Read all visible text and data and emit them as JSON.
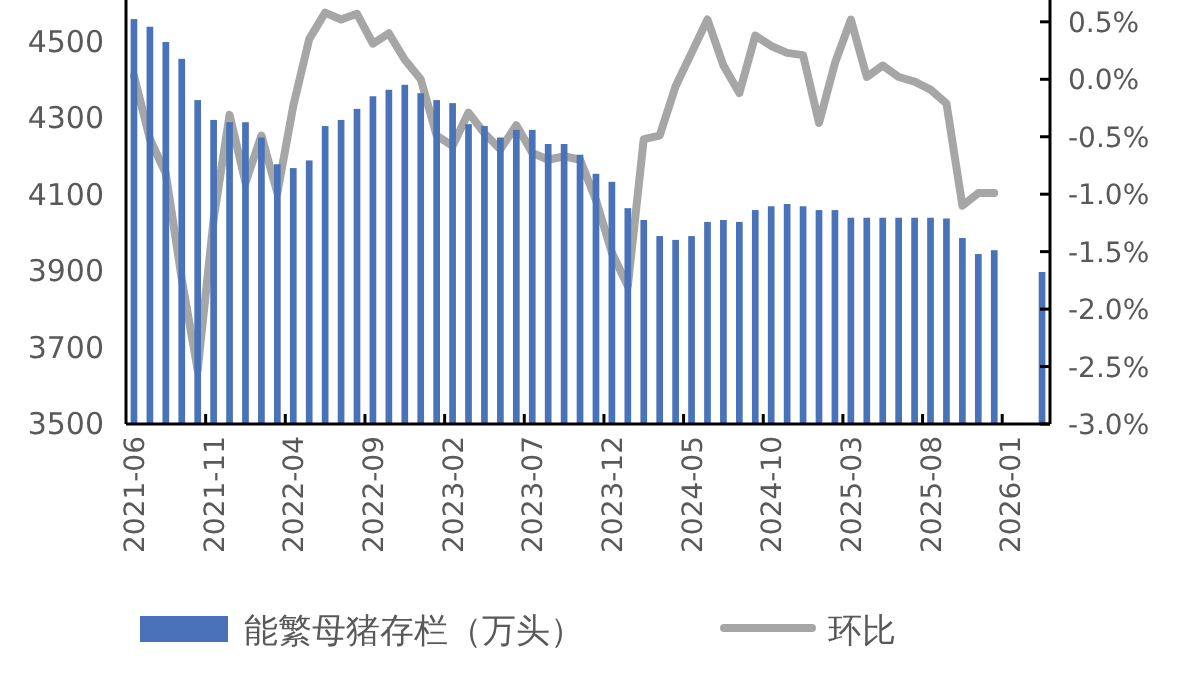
{
  "chart_data": {
    "type": "bar",
    "categories": [
      "2021-06",
      null,
      null,
      null,
      null,
      "2021-11",
      null,
      null,
      null,
      null,
      "2022-04",
      null,
      null,
      null,
      null,
      "2022-09",
      null,
      null,
      null,
      null,
      "2023-02",
      null,
      null,
      null,
      null,
      "2023-07",
      null,
      null,
      null,
      null,
      "2023-12",
      null,
      null,
      null,
      null,
      "2024-05",
      null,
      null,
      null,
      null,
      "2024-10",
      null,
      null,
      null,
      null,
      "2025-03",
      null,
      null,
      null,
      null,
      "2025-08",
      null,
      null,
      null,
      null,
      "2026-01",
      null,
      null
    ],
    "series": [
      {
        "name": "能繁母猪存栏（万头）",
        "color": "#4a72b8",
        "values": [
          4560,
          4540,
          4500,
          4456,
          4348,
          4296,
          4290,
          4290,
          4250,
          4180,
          4170,
          4190,
          4280,
          4296,
          4325,
          4358,
          4375,
          4388,
          4366,
          4348,
          4340,
          4285,
          4280,
          4250,
          4270,
          4270,
          4233,
          4233,
          4205,
          4155,
          4134,
          4065,
          4034,
          3992,
          3982,
          3992,
          4029,
          4034,
          4029,
          4060,
          4070,
          4076,
          4070,
          4060,
          4060,
          4040,
          4040,
          4040,
          4040,
          4040,
          4040,
          4038,
          3987,
          3945,
          3955,
          null,
          null,
          3898
        ]
      },
      {
        "name": "环比",
        "type": "line",
        "axis": "y2",
        "color": "#a6a6a6",
        "values": [
          0.03,
          -0.52,
          -0.82,
          -1.74,
          -2.53,
          -1.22,
          -0.31,
          -0.9,
          -0.49,
          -0.99,
          -0.23,
          0.35,
          0.58,
          0.52,
          0.57,
          0.31,
          0.4,
          0.17,
          0.0,
          -0.49,
          -0.58,
          -0.29,
          -0.47,
          -0.61,
          -0.4,
          -0.64,
          -0.7,
          -0.67,
          -0.7,
          -1.05,
          -1.51,
          -1.8,
          -0.52,
          -0.49,
          -0.06,
          0.23,
          0.52,
          0.12,
          -0.12,
          0.38,
          0.29,
          0.23,
          0.21,
          -0.38,
          0.14,
          0.52,
          0.02,
          0.12,
          0.02,
          -0.02,
          -0.09,
          -0.21,
          -1.1,
          -0.99,
          -0.99,
          null,
          null,
          null
        ]
      }
    ],
    "ylim": [
      3500,
      4610
    ],
    "yticks": [
      3500,
      3700,
      3900,
      4100,
      4300,
      4500
    ],
    "y2lim": [
      -3.0,
      0.69
    ],
    "y2ticks": [
      {
        "value": -3.0,
        "label": "-3.0%"
      },
      {
        "value": -2.5,
        "label": "-2.5%"
      },
      {
        "value": -2.0,
        "label": "-2.0%"
      },
      {
        "value": -1.5,
        "label": "-1.5%"
      },
      {
        "value": -1.0,
        "label": "-1.0%"
      },
      {
        "value": -0.5,
        "label": "-0.5%"
      },
      {
        "value": 0.0,
        "label": "0.0%"
      },
      {
        "value": 0.5,
        "label": "0.5%"
      }
    ],
    "legend": "bottom",
    "line_style": "solid",
    "marker": "none"
  }
}
